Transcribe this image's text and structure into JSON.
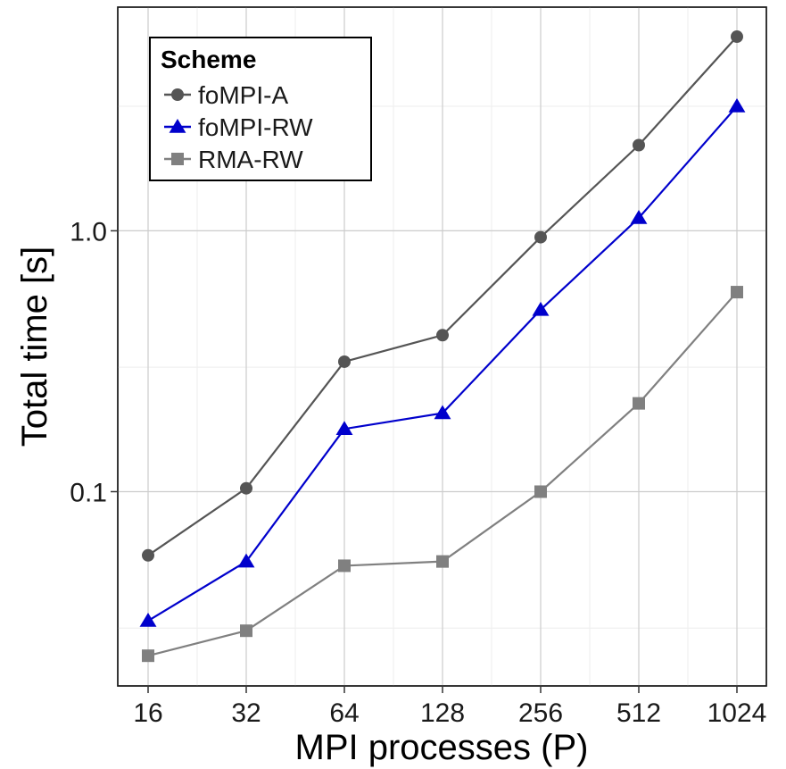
{
  "chart_data": {
    "type": "line",
    "xlabel": "MPI processes (P)",
    "ylabel": "Total time [s]",
    "x_scale": "log2",
    "y_scale": "log10",
    "x": [
      16,
      32,
      64,
      128,
      256,
      512,
      1024
    ],
    "x_tick_labels": [
      "16",
      "32",
      "64",
      "128",
      "256",
      "512",
      "1024"
    ],
    "y_ticks": [
      0.1,
      1.0
    ],
    "y_tick_labels": [
      "0.1",
      "1.0"
    ],
    "ylim": [
      0.018,
      7.2
    ],
    "grid": true,
    "legend": {
      "title": "Scheme",
      "position": "top-left"
    },
    "series": [
      {
        "name": "foMPI-A",
        "color": "#555555",
        "marker": "circle",
        "values": [
          0.057,
          0.103,
          0.315,
          0.398,
          0.945,
          2.13,
          5.55
        ]
      },
      {
        "name": "foMPI-RW",
        "color": "#0000cc",
        "marker": "triangle",
        "values": [
          0.032,
          0.054,
          0.174,
          0.2,
          0.498,
          1.12,
          3.0
        ]
      },
      {
        "name": "RMA-RW",
        "color": "#808080",
        "marker": "square",
        "values": [
          0.0235,
          0.0293,
          0.052,
          0.054,
          0.1,
          0.218,
          0.582
        ]
      }
    ]
  }
}
